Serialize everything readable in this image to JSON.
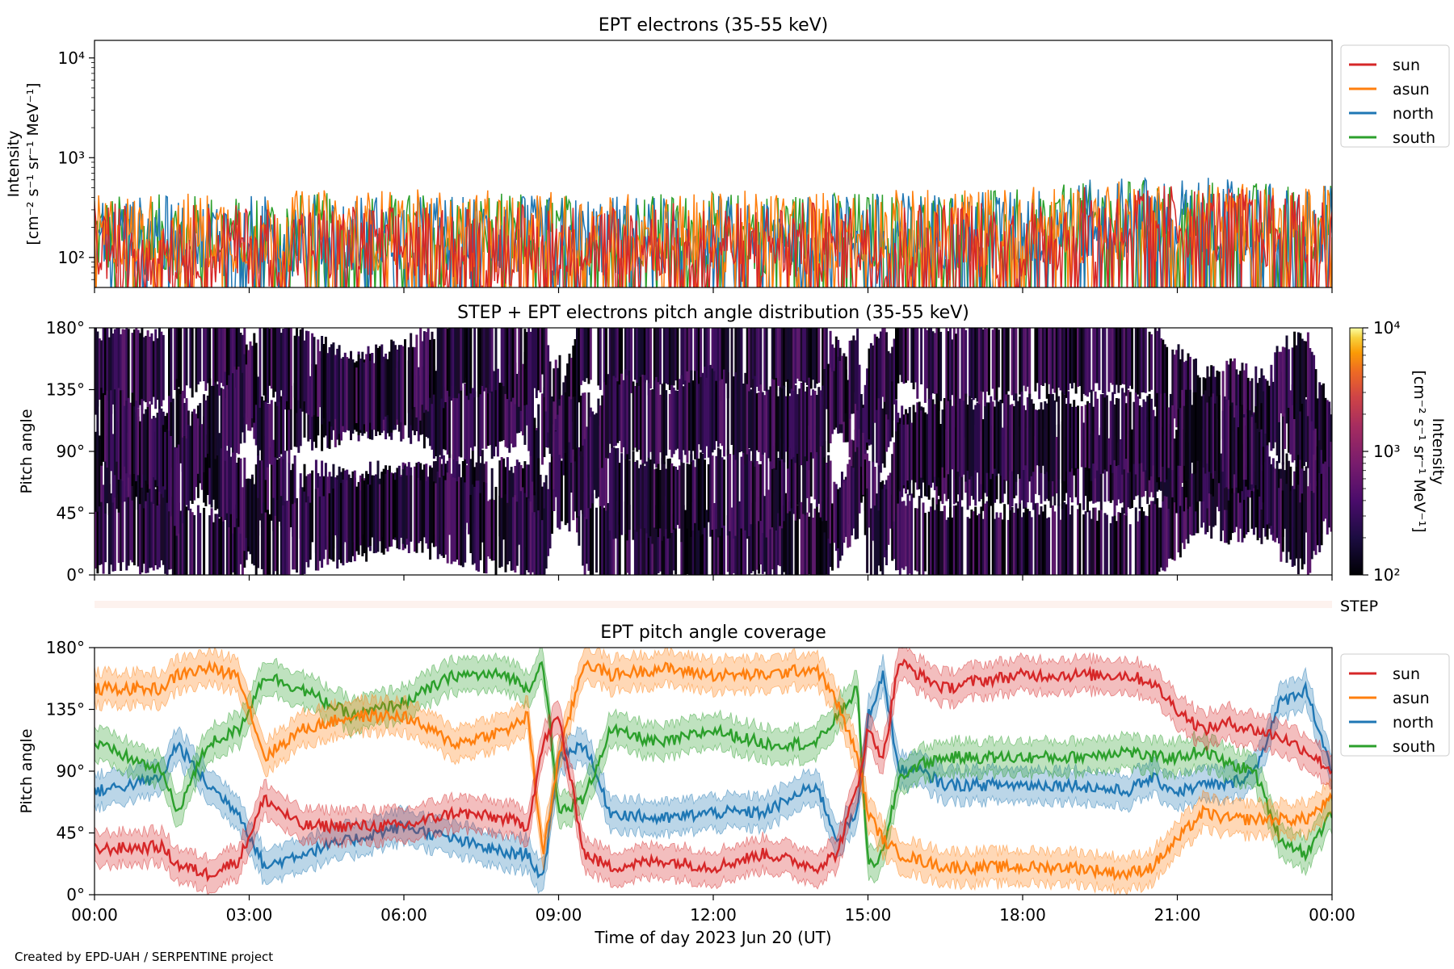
{
  "credit": "Created by EPD-UAH / SERPENTINE project",
  "xaxis": {
    "label": "Time of day 2023 Jun 20 (UT)",
    "range_hours": [
      0,
      24
    ],
    "ticks_hours": [
      0,
      3,
      6,
      9,
      12,
      15,
      18,
      21,
      24
    ],
    "tick_labels": [
      "00:00",
      "03:00",
      "06:00",
      "09:00",
      "12:00",
      "15:00",
      "18:00",
      "21:00",
      "00:00"
    ]
  },
  "colors": {
    "sun": "#d62728",
    "asun": "#ff7f0e",
    "north": "#1f77b4",
    "south": "#2ca02c"
  },
  "chart_data": [
    {
      "type": "line",
      "title": "EPT electrons (35-55 keV)",
      "ylabel_lines": [
        "Intensity",
        "[cm⁻² s⁻¹ sr⁻¹ MeV⁻¹]"
      ],
      "yscale": "log",
      "ylim": [
        50,
        15000
      ],
      "yticks": [
        100,
        1000,
        10000
      ],
      "ytick_labels": [
        "10²",
        "10³",
        "10⁴"
      ],
      "legend": "right-outside-top",
      "series": [
        {
          "name": "sun",
          "x": [
            0,
            3,
            6,
            9,
            12,
            15,
            18,
            20,
            22,
            24
          ],
          "values": [
            140,
            130,
            130,
            135,
            140,
            140,
            150,
            230,
            200,
            160
          ]
        },
        {
          "name": "asun",
          "x": [
            0,
            3,
            6,
            9,
            12,
            15,
            18,
            20,
            22,
            24
          ],
          "values": [
            170,
            180,
            190,
            175,
            180,
            185,
            200,
            230,
            220,
            210
          ]
        },
        {
          "name": "north",
          "x": [
            0,
            3,
            6,
            9,
            12,
            15,
            18,
            20,
            22,
            24
          ],
          "values": [
            160,
            165,
            170,
            160,
            170,
            175,
            185,
            260,
            240,
            200
          ]
        },
        {
          "name": "south",
          "x": [
            0,
            3,
            6,
            9,
            12,
            15,
            18,
            20,
            22,
            24
          ],
          "values": [
            165,
            170,
            175,
            170,
            175,
            180,
            190,
            240,
            230,
            210
          ]
        }
      ]
    },
    {
      "type": "heatmap",
      "title": "STEP + EPT electrons pitch angle distribution (35-55 keV)",
      "ylabel": "Pitch angle",
      "ylim": [
        0,
        180
      ],
      "yticks": [
        0,
        45,
        90,
        135,
        180
      ],
      "ytick_labels": [
        "0°",
        "45°",
        "90°",
        "135°",
        "180°"
      ],
      "colorbar": {
        "label_lines": [
          "Intensity",
          "[cm⁻² s⁻¹ sr⁻¹ MeV⁻¹]"
        ],
        "scale": "log",
        "range": [
          100,
          10000
        ],
        "tick_labels": [
          "10²",
          "10³",
          "10⁴"
        ],
        "colormap": "inferno"
      }
    },
    {
      "type": "area",
      "label": "STEP",
      "note": ""
    },
    {
      "type": "line",
      "title": "EPT pitch angle coverage",
      "ylabel": "Pitch angle",
      "ylim": [
        0,
        180
      ],
      "yticks": [
        0,
        45,
        90,
        135,
        180
      ],
      "ytick_labels": [
        "0°",
        "45°",
        "90°",
        "135°",
        "180°"
      ],
      "legend": "right-outside-top",
      "band_halfwidth_deg": 12,
      "series": [
        {
          "name": "sun",
          "x": [
            0,
            1.3,
            1.6,
            2.2,
            2.8,
            3.3,
            4,
            5,
            6,
            7,
            8,
            8.4,
            8.7,
            9,
            9.5,
            10,
            11,
            12,
            13,
            14,
            14.4,
            14.8,
            15,
            15.3,
            15.6,
            16,
            16.5,
            17,
            18,
            19,
            20,
            20.5,
            21,
            21.5,
            22,
            22.5,
            23,
            23.5,
            24
          ],
          "values": [
            33,
            35,
            22,
            15,
            25,
            70,
            50,
            50,
            50,
            60,
            55,
            50,
            110,
            130,
            30,
            20,
            25,
            20,
            30,
            20,
            30,
            80,
            120,
            100,
            170,
            160,
            150,
            155,
            160,
            160,
            160,
            155,
            135,
            120,
            125,
            120,
            115,
            105,
            90
          ]
        },
        {
          "name": "asun",
          "x": [
            0,
            1.3,
            1.6,
            2.2,
            2.8,
            3.3,
            4,
            5,
            6,
            7,
            8,
            8.4,
            8.7,
            9,
            9.5,
            10,
            11,
            12,
            13,
            14,
            14.4,
            14.8,
            15,
            15.3,
            15.6,
            16,
            16.5,
            17,
            18,
            19,
            20,
            20.5,
            21,
            21.5,
            22,
            22.5,
            23,
            23.5,
            24
          ],
          "values": [
            150,
            150,
            160,
            165,
            160,
            100,
            120,
            130,
            130,
            110,
            120,
            130,
            30,
            100,
            170,
            160,
            165,
            160,
            160,
            165,
            140,
            100,
            60,
            40,
            30,
            25,
            20,
            20,
            20,
            20,
            15,
            20,
            40,
            60,
            55,
            55,
            55,
            55,
            70
          ]
        },
        {
          "name": "north",
          "x": [
            0,
            1.3,
            1.6,
            2.2,
            2.8,
            3.3,
            4,
            5,
            6,
            7,
            8,
            8.4,
            8.7,
            9,
            9.5,
            10,
            11,
            12,
            13,
            14,
            14.4,
            14.8,
            15,
            15.3,
            15.6,
            16,
            16.5,
            17,
            18,
            19,
            20,
            20.5,
            21,
            21.5,
            22,
            22.5,
            23,
            23.5,
            24
          ],
          "values": [
            75,
            85,
            110,
            80,
            60,
            20,
            30,
            40,
            50,
            40,
            30,
            30,
            10,
            100,
            110,
            60,
            55,
            60,
            60,
            80,
            40,
            60,
            130,
            160,
            90,
            90,
            80,
            80,
            80,
            80,
            75,
            85,
            75,
            80,
            80,
            90,
            140,
            150,
            90
          ]
        },
        {
          "name": "south",
          "x": [
            0,
            1.3,
            1.6,
            2.2,
            2.8,
            3.3,
            4,
            5,
            6,
            7,
            8,
            8.4,
            8.7,
            9,
            9.5,
            10,
            11,
            12,
            13,
            14,
            14.4,
            14.8,
            15,
            15.3,
            15.6,
            16,
            16.5,
            17,
            18,
            19,
            20,
            20.5,
            21,
            21.5,
            22,
            22.5,
            23,
            23.5,
            24
          ],
          "values": [
            110,
            90,
            60,
            110,
            120,
            160,
            150,
            130,
            140,
            160,
            160,
            150,
            170,
            60,
            70,
            120,
            110,
            120,
            110,
            110,
            130,
            150,
            20,
            30,
            85,
            95,
            100,
            100,
            100,
            100,
            105,
            100,
            100,
            105,
            95,
            90,
            40,
            30,
            60
          ]
        }
      ]
    }
  ]
}
